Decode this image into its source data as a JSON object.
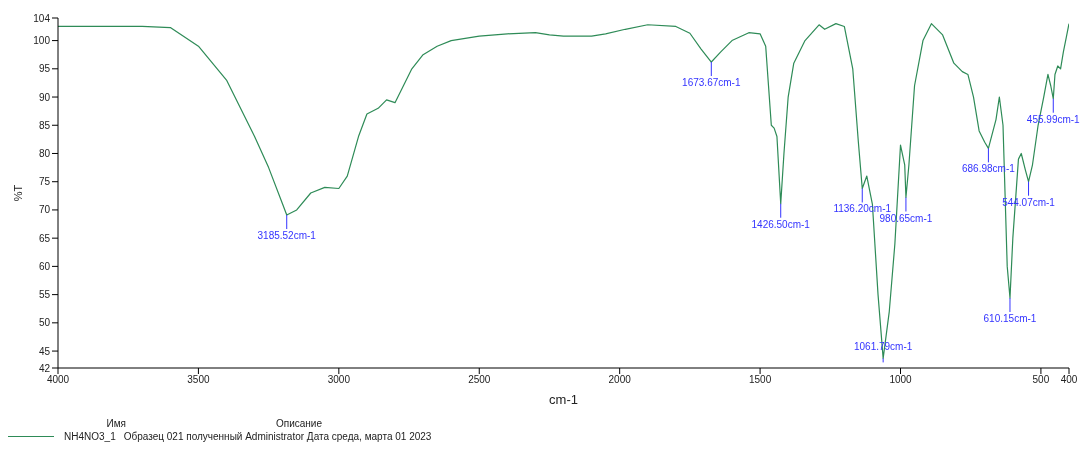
{
  "chart_data": {
    "type": "line",
    "xlabel": "cm-1",
    "ylabel": "%T",
    "legend_title": "Имя",
    "x": [
      4000,
      3700,
      3600,
      3500,
      3400,
      3300,
      3250,
      3200,
      3185.52,
      3150,
      3100,
      3050,
      3000,
      2970,
      2930,
      2900,
      2860,
      2830,
      2800,
      2770,
      2740,
      2700,
      2650,
      2600,
      2500,
      2400,
      2300,
      2250,
      2200,
      2100,
      2050,
      1980,
      1900,
      1800,
      1750,
      1710,
      1673.67,
      1640,
      1600,
      1540,
      1500,
      1480,
      1470,
      1460,
      1450,
      1440,
      1426.5,
      1415,
      1400,
      1380,
      1340,
      1290,
      1270,
      1230,
      1200,
      1170,
      1150,
      1136.2,
      1120,
      1100,
      1080,
      1061.79,
      1040,
      1020,
      1000,
      985,
      980.65,
      970,
      950,
      920,
      890,
      850,
      810,
      780,
      760,
      740,
      720,
      700,
      686.98,
      660,
      648,
      635,
      620,
      610.15,
      600,
      580,
      570,
      555,
      544.07,
      530,
      510,
      490,
      475,
      465,
      455.99,
      450,
      440,
      430,
      420,
      410,
      400
    ],
    "series": [
      {
        "name": "NH4NO3_1",
        "color": "#2e8b57",
        "values": [
          102.5,
          102.5,
          102.3,
          99,
          93,
          83,
          77.5,
          71,
          69.1,
          70,
          73,
          74,
          73.8,
          76,
          83,
          87,
          88,
          89.5,
          89,
          92,
          95,
          97.5,
          99,
          100,
          100.8,
          101.2,
          101.4,
          101,
          100.8,
          100.8,
          101.2,
          102,
          102.8,
          102.5,
          101.3,
          98.5,
          96.2,
          98,
          100,
          101.4,
          101.2,
          99,
          92,
          85,
          84.5,
          83,
          71.1,
          80,
          90,
          96,
          100,
          102.8,
          102,
          103,
          102.5,
          95,
          82,
          73.8,
          76,
          71,
          55,
          43.7,
          52,
          64,
          81.5,
          78,
          72.2,
          78,
          92,
          100,
          103,
          101,
          96,
          94.5,
          94,
          90,
          84,
          82,
          80.9,
          86,
          90,
          85,
          60,
          54.4,
          65,
          79,
          80,
          77,
          75,
          78,
          85,
          90,
          94,
          92,
          89.7,
          94,
          95.5,
          95,
          98,
          100.5,
          103
        ]
      }
    ],
    "xlim": [
      4000,
      400
    ],
    "xticks": [
      4000,
      3500,
      3000,
      2500,
      2000,
      1500,
      1000,
      500,
      400
    ],
    "ylim": [
      42,
      104
    ],
    "yticks": [
      42,
      45,
      50,
      55,
      60,
      65,
      70,
      75,
      80,
      85,
      90,
      95,
      100,
      104
    ],
    "grid": false,
    "legend": "bottom left",
    "annotations": [
      {
        "text": "3185.52cm-1",
        "x": 3185.52,
        "y": 69.1
      },
      {
        "text": "1673.67cm-1",
        "x": 1673.67,
        "y": 96.2
      },
      {
        "text": "1426.50cm-1",
        "x": 1426.5,
        "y": 71.1
      },
      {
        "text": "1136.20cm-1",
        "x": 1136.2,
        "y": 73.8
      },
      {
        "text": "1061.79cm-1",
        "x": 1061.79,
        "y": 43.7
      },
      {
        "text": "980.65cm-1",
        "x": 980.65,
        "y": 72.2
      },
      {
        "text": "686.98cm-1",
        "x": 686.98,
        "y": 80.9
      },
      {
        "text": "610.15cm-1",
        "x": 610.15,
        "y": 54.4
      },
      {
        "text": "544.07cm-1",
        "x": 544.07,
        "y": 75
      },
      {
        "text": "455.99cm-1",
        "x": 455.99,
        "y": 89.7
      },
      "Описание",
      "Образец 021 полученный Administrator Дата среда, марта 01 2023"
    ]
  }
}
